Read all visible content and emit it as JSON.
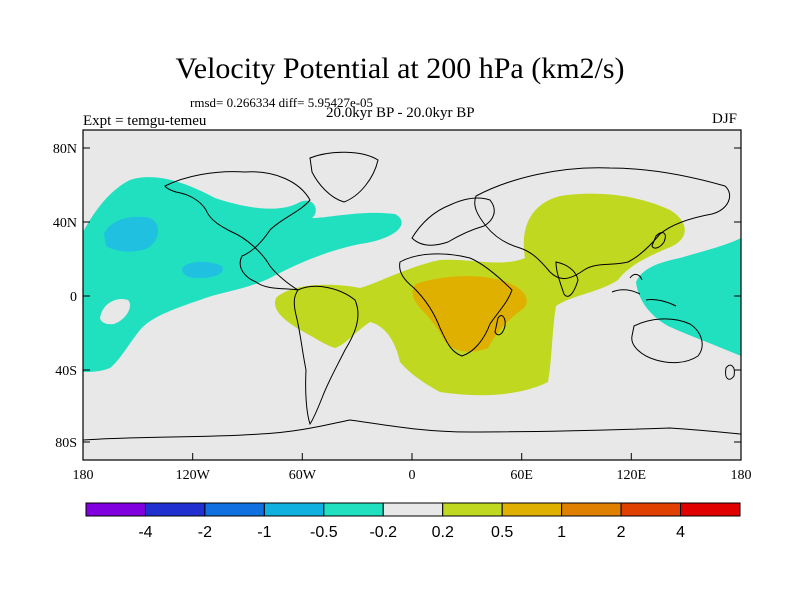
{
  "title": "Velocity Potential at 200 hPa (km2/s)",
  "stats": "rmsd= 0.266334 diff= 5.95427e-05",
  "expt": "Expt = temgu-temeu",
  "period": "20.0kyr BP - 20.0kyr BP",
  "season": "DJF",
  "colors": {
    "background": "#e8e8e8",
    "neg_light": "#20e0c0",
    "neg_mid": "#20c0e0",
    "pos_light": "#c0d820",
    "pos_mid": "#e0b000",
    "coast": "#000000"
  },
  "axes": {
    "lat_ticks": [
      "80N",
      "40N",
      "0",
      "40S",
      "80S"
    ],
    "lon_ticks": [
      "180",
      "120W",
      "60W",
      "0",
      "60E",
      "120E",
      "180"
    ]
  },
  "colorbar": {
    "colors": [
      "#8000e0",
      "#2030d0",
      "#1070e0",
      "#10b0e0",
      "#20e0c0",
      "#e8e8e8",
      "#c0d820",
      "#e0b000",
      "#e08000",
      "#e04000",
      "#e00000"
    ],
    "labels": [
      "-4",
      "-2",
      "-1",
      "-0.5",
      "-0.2",
      "0.2",
      "0.5",
      "1",
      "2",
      "4"
    ]
  }
}
